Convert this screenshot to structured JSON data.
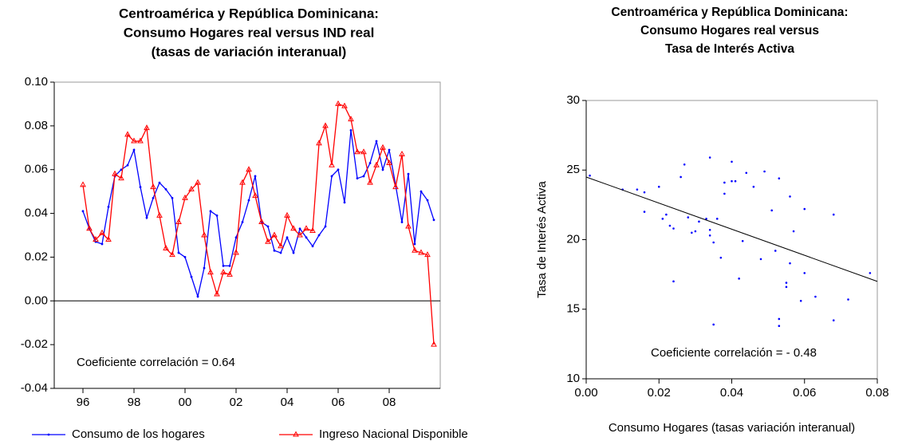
{
  "chart_data": [
    {
      "type": "line",
      "title": [
        "Centroamérica y República Dominicana:",
        "Consumo Hogares real versus IND real",
        "(tasas de variación interanual)"
      ],
      "annotation": "Coeficiente correlación = 0.64",
      "x": [
        1996,
        1996.25,
        1996.5,
        1996.75,
        1997,
        1997.25,
        1997.5,
        1997.75,
        1998,
        1998.25,
        1998.5,
        1998.75,
        1999,
        1999.25,
        1999.5,
        1999.75,
        2000,
        2000.25,
        2000.5,
        2000.75,
        2001,
        2001.25,
        2001.5,
        2001.75,
        2002,
        2002.25,
        2002.5,
        2002.75,
        2003,
        2003.25,
        2003.5,
        2003.75,
        2004,
        2004.25,
        2004.5,
        2004.75,
        2005,
        2005.25,
        2005.5,
        2005.75,
        2006,
        2006.25,
        2006.5,
        2006.75,
        2007,
        2007.25,
        2007.5,
        2007.75,
        2008,
        2008.25,
        2008.5,
        2008.75,
        2009,
        2009.25,
        2009.5,
        2009.75
      ],
      "series": [
        {
          "name": "Consumo de los hogares",
          "color": "#0000ff",
          "marker": "dot",
          "values": [
            0.041,
            0.033,
            0.027,
            0.026,
            0.043,
            0.057,
            0.06,
            0.062,
            0.069,
            0.052,
            0.038,
            0.047,
            0.054,
            0.051,
            0.047,
            0.022,
            0.02,
            0.011,
            0.002,
            0.015,
            0.041,
            0.039,
            0.016,
            0.016,
            0.029,
            0.036,
            0.046,
            0.057,
            0.036,
            0.034,
            0.023,
            0.022,
            0.029,
            0.022,
            0.033,
            0.029,
            0.025,
            0.03,
            0.034,
            0.057,
            0.06,
            0.045,
            0.078,
            0.056,
            0.057,
            0.063,
            0.073,
            0.06,
            0.069,
            0.053,
            0.036,
            0.058,
            0.026,
            0.05,
            0.046,
            0.037
          ]
        },
        {
          "name": "Ingreso Nacional Disponible",
          "color": "#ff0000",
          "marker": "triangle",
          "values": [
            0.053,
            0.033,
            0.028,
            0.031,
            0.028,
            0.058,
            0.056,
            0.076,
            0.073,
            0.073,
            0.079,
            0.052,
            0.039,
            0.024,
            0.021,
            0.036,
            0.047,
            0.051,
            0.054,
            0.03,
            0.013,
            0.003,
            0.013,
            0.012,
            0.022,
            0.054,
            0.06,
            0.048,
            0.036,
            0.027,
            0.03,
            0.025,
            0.039,
            0.033,
            0.03,
            0.033,
            0.032,
            0.072,
            0.08,
            0.062,
            0.09,
            0.089,
            0.083,
            0.068,
            0.068,
            0.054,
            0.062,
            0.07,
            0.063,
            0.052,
            0.067,
            0.034,
            0.023,
            0.022,
            0.021,
            -0.02
          ]
        }
      ],
      "xlim": [
        1994.875,
        2010
      ],
      "xticks": [
        {
          "value": 1996,
          "label": "96"
        },
        {
          "value": 1998,
          "label": "98"
        },
        {
          "value": 2000,
          "label": "00"
        },
        {
          "value": 2002,
          "label": "02"
        },
        {
          "value": 2004,
          "label": "04"
        },
        {
          "value": 2006,
          "label": "06"
        },
        {
          "value": 2008,
          "label": "08"
        }
      ],
      "ylim": [
        -0.04,
        0.1
      ],
      "yticks": [
        {
          "value": 0.1,
          "label": "0.10"
        },
        {
          "value": 0.08,
          "label": "0.08"
        },
        {
          "value": 0.06,
          "label": "0.06"
        },
        {
          "value": 0.04,
          "label": "0.04"
        },
        {
          "value": 0.02,
          "label": "0.02"
        },
        {
          "value": 0.0,
          "label": "0.00"
        },
        {
          "value": -0.02,
          "label": "-0.02"
        },
        {
          "value": -0.04,
          "label": "-0.04"
        }
      ],
      "legend": "bottom"
    },
    {
      "type": "scatter",
      "title": [
        "Centroamérica y República Dominicana:",
        "Consumo Hogares real versus",
        "Tasa de Interés Activa"
      ],
      "annotation": "Coeficiente correlación = - 0.48",
      "xlabel": "Consumo Hogares (tasas variación interanual)",
      "ylabel": "Tasa de Interés Activa",
      "color": "#0000ff",
      "x": [
        0.001,
        0.01,
        0.014,
        0.016,
        0.016,
        0.02,
        0.021,
        0.022,
        0.023,
        0.024,
        0.024,
        0.026,
        0.027,
        0.028,
        0.029,
        0.03,
        0.031,
        0.033,
        0.034,
        0.034,
        0.034,
        0.035,
        0.035,
        0.036,
        0.037,
        0.038,
        0.038,
        0.04,
        0.04,
        0.041,
        0.042,
        0.043,
        0.044,
        0.046,
        0.048,
        0.049,
        0.051,
        0.052,
        0.053,
        0.053,
        0.053,
        0.055,
        0.055,
        0.056,
        0.056,
        0.057,
        0.059,
        0.06,
        0.06,
        0.063,
        0.068,
        0.068,
        0.072,
        0.078
      ],
      "values": [
        24.6,
        23.6,
        23.6,
        23.4,
        22.0,
        23.8,
        21.5,
        21.8,
        21.0,
        20.8,
        17.0,
        24.5,
        25.4,
        21.6,
        20.5,
        20.6,
        21.3,
        21.5,
        25.9,
        20.7,
        20.3,
        19.8,
        13.9,
        21.5,
        18.7,
        24.1,
        23.3,
        25.6,
        24.2,
        24.2,
        17.2,
        19.9,
        24.8,
        23.8,
        18.6,
        24.9,
        22.1,
        19.2,
        24.4,
        14.3,
        13.8,
        16.9,
        16.6,
        23.1,
        18.3,
        20.6,
        15.6,
        22.2,
        17.6,
        15.9,
        21.8,
        14.2,
        15.7,
        17.6
      ],
      "fit_line": {
        "x": [
          0,
          0.08
        ],
        "values": [
          24.5,
          17.0
        ]
      },
      "xlim": [
        0,
        0.08
      ],
      "xticks": [
        {
          "value": 0,
          "label": "0.00"
        },
        {
          "value": 0.02,
          "label": "0.02"
        },
        {
          "value": 0.04,
          "label": "0.04"
        },
        {
          "value": 0.06,
          "label": "0.06"
        },
        {
          "value": 0.08,
          "label": "0.08"
        }
      ],
      "ylim": [
        10,
        30
      ],
      "yticks": [
        10,
        15,
        20,
        25,
        30
      ]
    }
  ]
}
